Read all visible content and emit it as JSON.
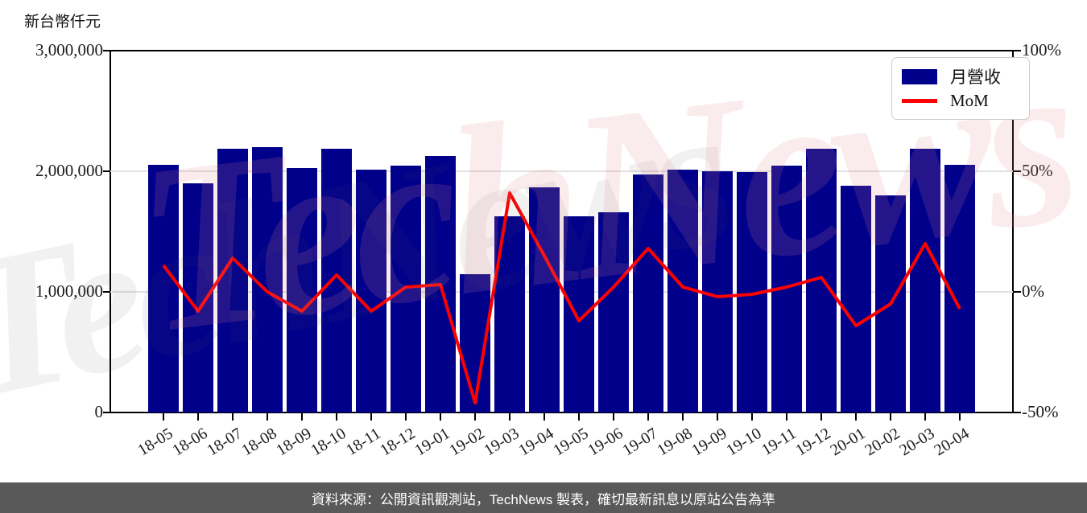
{
  "chart": {
    "unit_label": "新台幣仟元",
    "watermark": "TechNews",
    "legend": {
      "bar_label": "月營收",
      "line_label": "MoM"
    },
    "left_axis": {
      "tick_labels": [
        "3,000,000",
        "2,000,000",
        "1,000,000",
        "0"
      ]
    },
    "right_axis": {
      "tick_labels": [
        "100%",
        "50%",
        "0%",
        "-50%"
      ]
    },
    "colors": {
      "bar": "#00008B",
      "line": "#FF0000",
      "grid": "#e2e2e2",
      "footer_bg": "#595959"
    }
  },
  "chart_data": {
    "type": "bar",
    "title": "",
    "categories": [
      "18-05",
      "18-06",
      "18-07",
      "18-08",
      "18-09",
      "18-10",
      "18-11",
      "18-12",
      "19-01",
      "19-02",
      "19-03",
      "19-04",
      "19-05",
      "19-06",
      "19-07",
      "19-08",
      "19-09",
      "19-10",
      "19-11",
      "19-12",
      "20-01",
      "20-02",
      "20-03",
      "20-04"
    ],
    "series": [
      {
        "name": "月營收",
        "type": "bar",
        "axis": "left",
        "color": "#00008B",
        "unit": "新台幣仟元",
        "values": [
          2055000,
          1900000,
          2185000,
          2200000,
          2025000,
          2190000,
          2015000,
          2045000,
          2125000,
          1145000,
          1630000,
          1865000,
          1630000,
          1660000,
          1975000,
          2015000,
          2000000,
          1995000,
          2045000,
          2185000,
          1880000,
          1800000,
          2190000,
          2055000
        ]
      },
      {
        "name": "MoM",
        "type": "line",
        "axis": "right",
        "color": "#FF0000",
        "unit": "%",
        "values": [
          11,
          -8,
          14,
          0,
          -8,
          7,
          -8,
          2,
          3,
          -46,
          41,
          15,
          -12,
          2,
          18,
          2,
          -2,
          -1,
          2,
          6,
          -14,
          -5,
          20,
          -7
        ]
      }
    ],
    "left_ylim": [
      0,
      3000000
    ],
    "right_ylim": [
      -50,
      100
    ],
    "grid": true,
    "legend_position": "upper right"
  },
  "footer": {
    "text": "資料來源：公開資訊觀測站，TechNews 製表，確切最新訊息以原站公告為準"
  }
}
